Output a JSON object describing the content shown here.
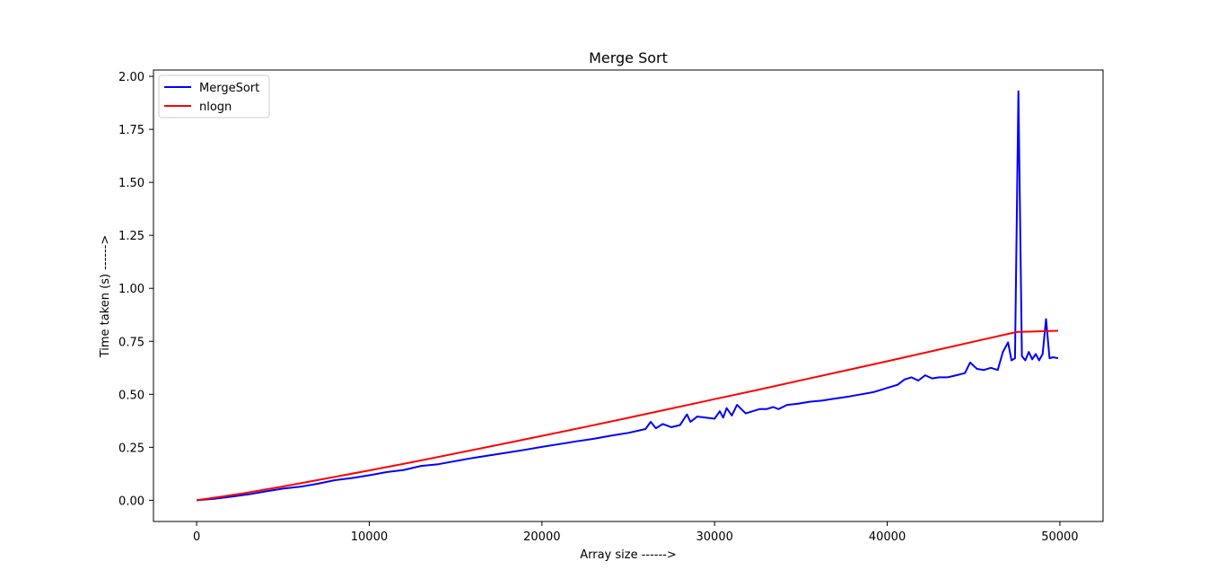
{
  "chart_data": {
    "type": "line",
    "title": "Merge Sort",
    "xlabel": "Array size ------>",
    "ylabel": "Time taken (s) ------>",
    "xlim": [
      -2500,
      52500
    ],
    "ylim": [
      -0.1,
      2.03
    ],
    "xticks": [
      0,
      10000,
      20000,
      30000,
      40000,
      50000
    ],
    "xtick_labels": [
      "0",
      "10000",
      "20000",
      "30000",
      "40000",
      "50000"
    ],
    "yticks": [
      0.0,
      0.25,
      0.5,
      0.75,
      1.0,
      1.25,
      1.5,
      1.75,
      2.0
    ],
    "ytick_labels": [
      "0.00",
      "0.25",
      "0.50",
      "0.75",
      "1.00",
      "1.25",
      "1.50",
      "1.75",
      "2.00"
    ],
    "grid": false,
    "legend": "top-left",
    "series": [
      {
        "name": "MergeSort",
        "color": "#0000ff",
        "x": [
          0,
          1000,
          2000,
          3000,
          4000,
          5000,
          6000,
          7000,
          8000,
          9000,
          10000,
          11000,
          12000,
          13000,
          14000,
          15000,
          16000,
          17000,
          18000,
          19000,
          20000,
          21000,
          22000,
          23000,
          24000,
          25000,
          26000,
          26300,
          26600,
          27000,
          27500,
          28000,
          28400,
          28600,
          29000,
          30000,
          30300,
          30500,
          30700,
          31000,
          31300,
          31800,
          32200,
          32600,
          33000,
          33400,
          33700,
          34200,
          34800,
          35500,
          36200,
          37000,
          37800,
          38500,
          39200,
          40000,
          40600,
          41000,
          41400,
          41800,
          42200,
          42600,
          43000,
          43500,
          44000,
          44500,
          44800,
          45200,
          45600,
          46000,
          46400,
          46700,
          47000,
          47200,
          47400,
          47600,
          47800,
          48000,
          48200,
          48400,
          48600,
          48800,
          49000,
          49200,
          49400,
          49600,
          49900
        ],
        "y": [
          0.0,
          0.007,
          0.017,
          0.028,
          0.042,
          0.055,
          0.064,
          0.078,
          0.095,
          0.105,
          0.118,
          0.133,
          0.143,
          0.162,
          0.17,
          0.185,
          0.2,
          0.212,
          0.225,
          0.238,
          0.252,
          0.265,
          0.278,
          0.29,
          0.305,
          0.318,
          0.336,
          0.37,
          0.34,
          0.36,
          0.345,
          0.355,
          0.405,
          0.37,
          0.395,
          0.385,
          0.42,
          0.39,
          0.435,
          0.4,
          0.45,
          0.41,
          0.42,
          0.43,
          0.43,
          0.44,
          0.43,
          0.45,
          0.455,
          0.465,
          0.47,
          0.48,
          0.49,
          0.5,
          0.51,
          0.53,
          0.545,
          0.57,
          0.58,
          0.565,
          0.59,
          0.575,
          0.58,
          0.58,
          0.59,
          0.6,
          0.65,
          0.62,
          0.615,
          0.625,
          0.615,
          0.7,
          0.745,
          0.66,
          0.67,
          1.93,
          0.68,
          0.66,
          0.7,
          0.665,
          0.69,
          0.66,
          0.69,
          0.855,
          0.67,
          0.675,
          0.67
        ]
      },
      {
        "name": "nlogn",
        "color": "#ff0000",
        "x": [
          0,
          2500,
          5000,
          7500,
          10000,
          12500,
          15000,
          17500,
          20000,
          22500,
          25000,
          27500,
          30000,
          32500,
          35000,
          37500,
          40000,
          42500,
          45000,
          47500,
          49900
        ],
        "y": [
          0.0,
          0.03,
          0.065,
          0.103,
          0.141,
          0.18,
          0.221,
          0.262,
          0.304,
          0.346,
          0.389,
          0.433,
          0.477,
          0.521,
          0.566,
          0.611,
          0.656,
          0.702,
          0.748,
          0.794,
          0.8
        ]
      }
    ]
  }
}
